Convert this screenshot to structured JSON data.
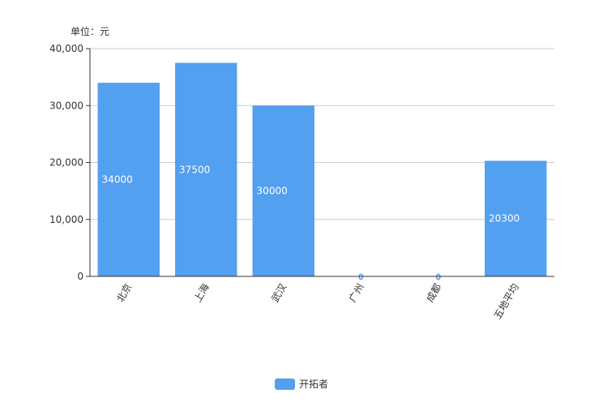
{
  "chart_data": {
    "type": "bar",
    "unit_label": "单位：元",
    "categories": [
      "北京",
      "上海",
      "武汉",
      "广州",
      "成都",
      "五地平均"
    ],
    "series": [
      {
        "name": "开拓者",
        "values": [
          34000,
          37500,
          30000,
          0,
          0,
          20300
        ],
        "color": "#539ff0"
      }
    ],
    "ylim": [
      0,
      40000
    ],
    "yticks": [
      "0",
      "10,000",
      "20,000",
      "30,000",
      "40,000"
    ],
    "ytick_values": [
      0,
      10000,
      20000,
      30000,
      40000
    ],
    "grid": true,
    "legend_position": "bottom"
  }
}
